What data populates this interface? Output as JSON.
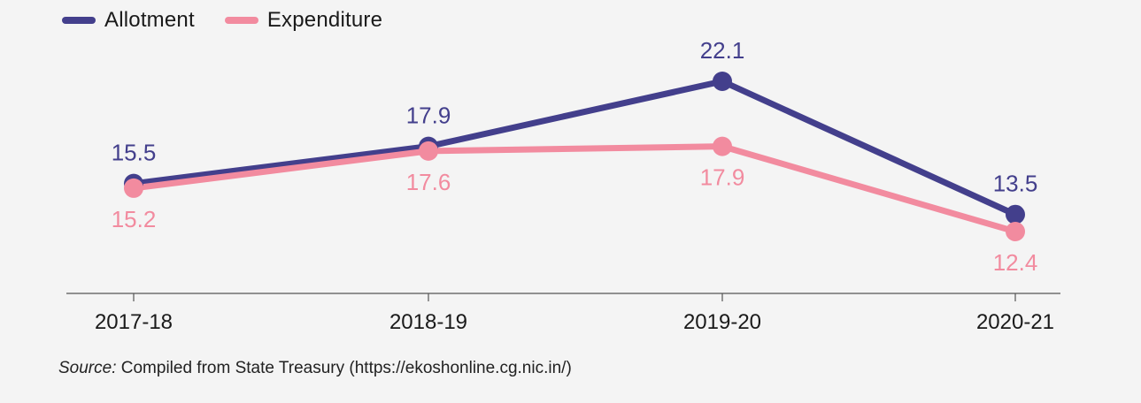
{
  "chart_data": {
    "type": "line",
    "categories": [
      "2017-18",
      "2018-19",
      "2019-20",
      "2020-21"
    ],
    "series": [
      {
        "name": "Allotment",
        "values": [
          15.5,
          17.9,
          22.1,
          13.5
        ],
        "color": "#433f8c"
      },
      {
        "name": "Expenditure",
        "values": [
          15.2,
          17.6,
          17.9,
          12.4
        ],
        "color": "#f28b9f"
      }
    ],
    "title": "",
    "xlabel": "",
    "ylabel": "",
    "ylim": [
      6.5,
      23.5
    ],
    "grid": false,
    "legend_position": "top-left"
  },
  "source": {
    "label": "Source:",
    "text": " Compiled from State Treasury (https://ekoshonline.cg.nic.in/)"
  }
}
